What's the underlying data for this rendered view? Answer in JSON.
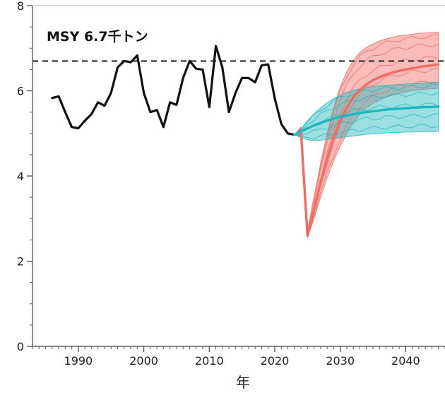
{
  "chart_data": {
    "type": "line",
    "xlabel": "年",
    "ylabel": "",
    "xlim": [
      1983,
      2046
    ],
    "ylim": [
      0,
      8
    ],
    "x_ticks": [
      1990,
      2000,
      2010,
      2020,
      2030,
      2040
    ],
    "y_ticks": [
      0,
      2,
      4,
      6,
      8
    ],
    "grid": false,
    "reference_line": {
      "label": "MSY 6.7千トン",
      "value": 6.7,
      "style": "dashed"
    },
    "series": [
      {
        "name": "",
        "color": "#111111",
        "x": [
          1986,
          1987,
          1988,
          1989,
          1990,
          1991,
          1992,
          1993,
          1994,
          1995,
          1996,
          1997,
          1998,
          1999,
          2000,
          2001,
          2002,
          2003,
          2004,
          2005,
          2006,
          2007,
          2008,
          2009,
          2010,
          2011,
          2012,
          2013,
          2014,
          2015,
          2016,
          2017,
          2018,
          2019,
          2020,
          2021,
          2022,
          2023
        ],
        "y": [
          5.83,
          5.87,
          5.5,
          5.15,
          5.12,
          5.3,
          5.45,
          5.73,
          5.65,
          5.95,
          6.55,
          6.7,
          6.67,
          6.83,
          5.95,
          5.5,
          5.55,
          5.15,
          5.73,
          5.67,
          6.3,
          6.7,
          6.52,
          6.5,
          5.62,
          7.05,
          6.55,
          5.5,
          5.95,
          6.3,
          6.3,
          6.2,
          6.6,
          6.62,
          5.82,
          5.22,
          5.0,
          4.97
        ]
      },
      {
        "name": "",
        "color": "#f26b63",
        "x": [
          2023,
          2024,
          2025,
          2026,
          2027,
          2028,
          2029,
          2030,
          2031,
          2032,
          2033,
          2034,
          2035,
          2036,
          2037,
          2038,
          2039,
          2040,
          2041,
          2042,
          2043,
          2044,
          2045
        ],
        "y": [
          4.97,
          5.05,
          2.6,
          3.2,
          3.85,
          4.4,
          4.9,
          5.3,
          5.6,
          5.85,
          6.02,
          6.15,
          6.25,
          6.32,
          6.38,
          6.43,
          6.47,
          6.5,
          6.53,
          6.56,
          6.58,
          6.6,
          6.62
        ],
        "band_upper": [
          4.97,
          5.15,
          2.7,
          3.5,
          4.3,
          5.0,
          5.6,
          6.1,
          6.45,
          6.72,
          6.9,
          7.02,
          7.1,
          7.17,
          7.22,
          7.26,
          7.29,
          7.31,
          7.33,
          7.35,
          7.36,
          7.37,
          7.38
        ],
        "band_lower": [
          4.97,
          4.95,
          2.55,
          3.0,
          3.5,
          3.95,
          4.35,
          4.7,
          5.0,
          5.25,
          5.45,
          5.6,
          5.7,
          5.78,
          5.85,
          5.9,
          5.94,
          5.97,
          6.0,
          6.02,
          6.04,
          6.05,
          6.06
        ]
      },
      {
        "name": "",
        "color": "#1fb8bf",
        "x": [
          2023,
          2024,
          2025,
          2026,
          2027,
          2028,
          2029,
          2030,
          2031,
          2032,
          2033,
          2034,
          2035,
          2036,
          2037,
          2038,
          2039,
          2040,
          2041,
          2042,
          2043,
          2044,
          2045
        ],
        "y": [
          4.97,
          5.05,
          5.12,
          5.19,
          5.25,
          5.3,
          5.35,
          5.39,
          5.42,
          5.45,
          5.48,
          5.5,
          5.52,
          5.54,
          5.56,
          5.57,
          5.58,
          5.59,
          5.6,
          5.61,
          5.62,
          5.62,
          5.63
        ],
        "band_upper": [
          4.97,
          5.1,
          5.3,
          5.46,
          5.6,
          5.72,
          5.82,
          5.9,
          5.96,
          6.01,
          6.05,
          6.08,
          6.1,
          6.12,
          6.13,
          6.14,
          6.15,
          6.16,
          6.17,
          6.18,
          6.19,
          6.2,
          6.2
        ],
        "band_lower": [
          4.97,
          4.9,
          4.85,
          4.83,
          4.84,
          4.86,
          4.88,
          4.9,
          4.92,
          4.94,
          4.96,
          4.98,
          4.99,
          5.0,
          5.01,
          5.02,
          5.02,
          5.03,
          5.03,
          5.04,
          5.04,
          5.04,
          5.05
        ]
      }
    ]
  }
}
